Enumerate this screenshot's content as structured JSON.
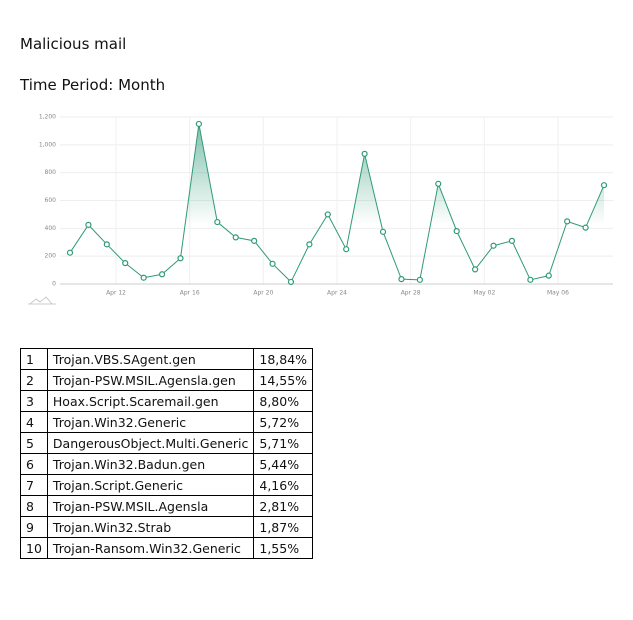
{
  "header": {
    "title": "Malicious mail",
    "subtitle": "Time Period: Month"
  },
  "chart_data": {
    "type": "line",
    "categories": [
      null,
      null,
      "Apr 12",
      null,
      null,
      null,
      "Apr 16",
      null,
      null,
      null,
      "Apr 20",
      null,
      null,
      null,
      "Apr 24",
      null,
      null,
      null,
      "Apr 28",
      null,
      null,
      null,
      "May 02",
      null,
      null,
      null,
      "May 06",
      null,
      null,
      null
    ],
    "series": [
      {
        "color": "#2e9a78",
        "values": [
          225,
          425,
          285,
          150,
          45,
          70,
          185,
          1150,
          445,
          335,
          310,
          145,
          15,
          285,
          500,
          250,
          935,
          375,
          35,
          30,
          720,
          380,
          105,
          275,
          310,
          30,
          60,
          450,
          405,
          710
        ]
      }
    ],
    "ylim": [
      0,
      1200
    ],
    "yticks": [
      0,
      200,
      400,
      600,
      800,
      {
        "value": 1000,
        "label": "1,000"
      },
      {
        "value": 1200,
        "label": "1,200"
      }
    ],
    "grid": true
  },
  "table": {
    "rows": [
      [
        "1",
        "Trojan.VBS.SAgent.gen",
        "18,84%"
      ],
      [
        "2",
        "Trojan-PSW.MSIL.Agensla.gen",
        "14,55%"
      ],
      [
        "3",
        "Hoax.Script.Scaremail.gen",
        "8,80%"
      ],
      [
        "4",
        "Trojan.Win32.Generic",
        "5,72%"
      ],
      [
        "5",
        "DangerousObject.Multi.Generic",
        "5,71%"
      ],
      [
        "6",
        "Trojan.Win32.Badun.gen",
        "5,44%"
      ],
      [
        "7",
        "Trojan.Script.Generic",
        "4,16%"
      ],
      [
        "8",
        "Trojan-PSW.MSIL.Agensla",
        "2,81%"
      ],
      [
        "9",
        "Trojan.Win32.Strab",
        "1,87%"
      ],
      [
        "10",
        "Trojan-Ransom.Win32.Generic",
        "1,55%"
      ]
    ]
  }
}
